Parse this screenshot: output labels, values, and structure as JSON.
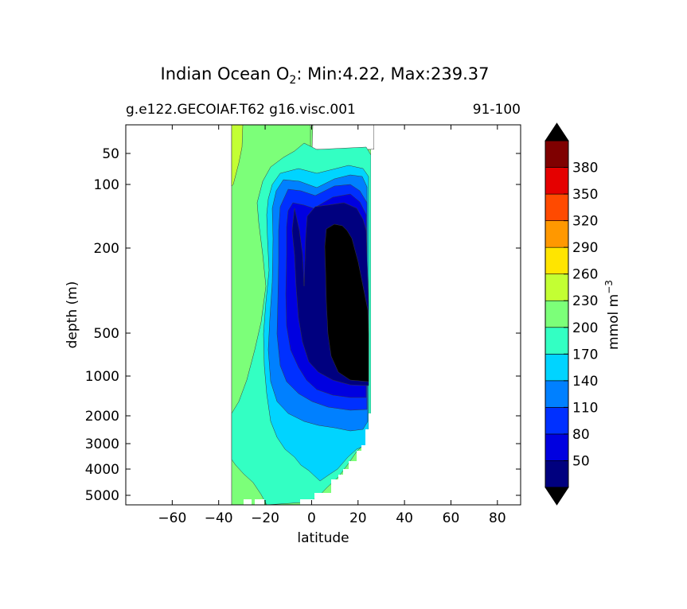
{
  "chart_data": {
    "type": "contour",
    "title": {
      "main": "Indian Ocean O",
      "subscript": "2",
      "rest": ": Min:4.22, Max:239.37"
    },
    "subtitle_left": "g.e122.GECOIAF.T62 g16.visc.001",
    "subtitle_right": "91-100",
    "xlabel": "latitude",
    "ylabel": "depth (m)",
    "xlim": [
      -80,
      90
    ],
    "x_ticks": [
      -60,
      -40,
      -20,
      0,
      20,
      40,
      60,
      80
    ],
    "x_tick_labels": [
      "−60",
      "−40",
      "−20",
      "0",
      "20",
      "40",
      "60",
      "80"
    ],
    "y_scale": "custom-stretched-depth",
    "y_ticks": [
      50,
      100,
      200,
      500,
      1000,
      2000,
      3000,
      4000,
      5000
    ],
    "y_tick_labels": [
      "50",
      "100",
      "200",
      "500",
      "1000",
      "2000",
      "3000",
      "4000",
      "5000"
    ],
    "y_inverted": true,
    "stats": {
      "min": 4.22,
      "max": 239.37
    },
    "colorbar": {
      "label": "mmol m",
      "label_superscript": "−3",
      "levels": [
        20,
        50,
        80,
        110,
        140,
        170,
        200,
        230,
        260,
        290,
        320,
        350,
        380,
        410
      ],
      "tick_values": [
        50,
        80,
        110,
        140,
        170,
        200,
        230,
        260,
        290,
        320,
        350,
        380
      ],
      "colors": [
        "#00007f",
        "#0000e0",
        "#0030ff",
        "#0080ff",
        "#00d4ff",
        "#33ffc3",
        "#7cff79",
        "#c3ff33",
        "#ffe500",
        "#ff9800",
        "#ff4a00",
        "#e50000",
        "#7f0000"
      ],
      "under_color": "#000000",
      "over_color": "#000000",
      "extend": "both"
    },
    "fields": [
      {
        "level_min": 200,
        "color": "#7cff79",
        "lat_min": -34,
        "lat_max": 27,
        "depth_min": 10,
        "depth_max": 5500
      },
      {
        "level_min": 230,
        "color": "#c3ff33",
        "lat_min": -34,
        "lat_max": -30,
        "depth_min": 10,
        "depth_max": 100
      },
      {
        "level_min": 170,
        "color": "#33ffc3",
        "lat_min": -24,
        "lat_max": 26,
        "depth_min": 40,
        "depth_max": 5500
      },
      {
        "level_min": 140,
        "color": "#00d4ff",
        "lat_min": -18,
        "lat_max": 25,
        "depth_min": 80,
        "depth_max": 4800
      },
      {
        "level_min": 110,
        "color": "#0080ff",
        "lat_min": -16,
        "lat_max": 25,
        "depth_min": 90,
        "depth_max": 2000
      },
      {
        "level_min": 80,
        "color": "#0030ff",
        "lat_min": -15,
        "lat_max": 25,
        "depth_min": 100,
        "depth_max": 1800
      },
      {
        "level_min": 50,
        "color": "#0000e0",
        "lat_min": -13,
        "lat_max": 25,
        "depth_min": 120,
        "depth_max": 1500
      },
      {
        "level_min": 20,
        "color": "#00007f",
        "lat_min": 0,
        "lat_max": 25,
        "depth_min": 150,
        "depth_max": 1300
      },
      {
        "level_min": 0,
        "color": "#000000",
        "lat_min": 7,
        "lat_max": 25,
        "depth_min": 170,
        "depth_max": 1000
      }
    ]
  }
}
